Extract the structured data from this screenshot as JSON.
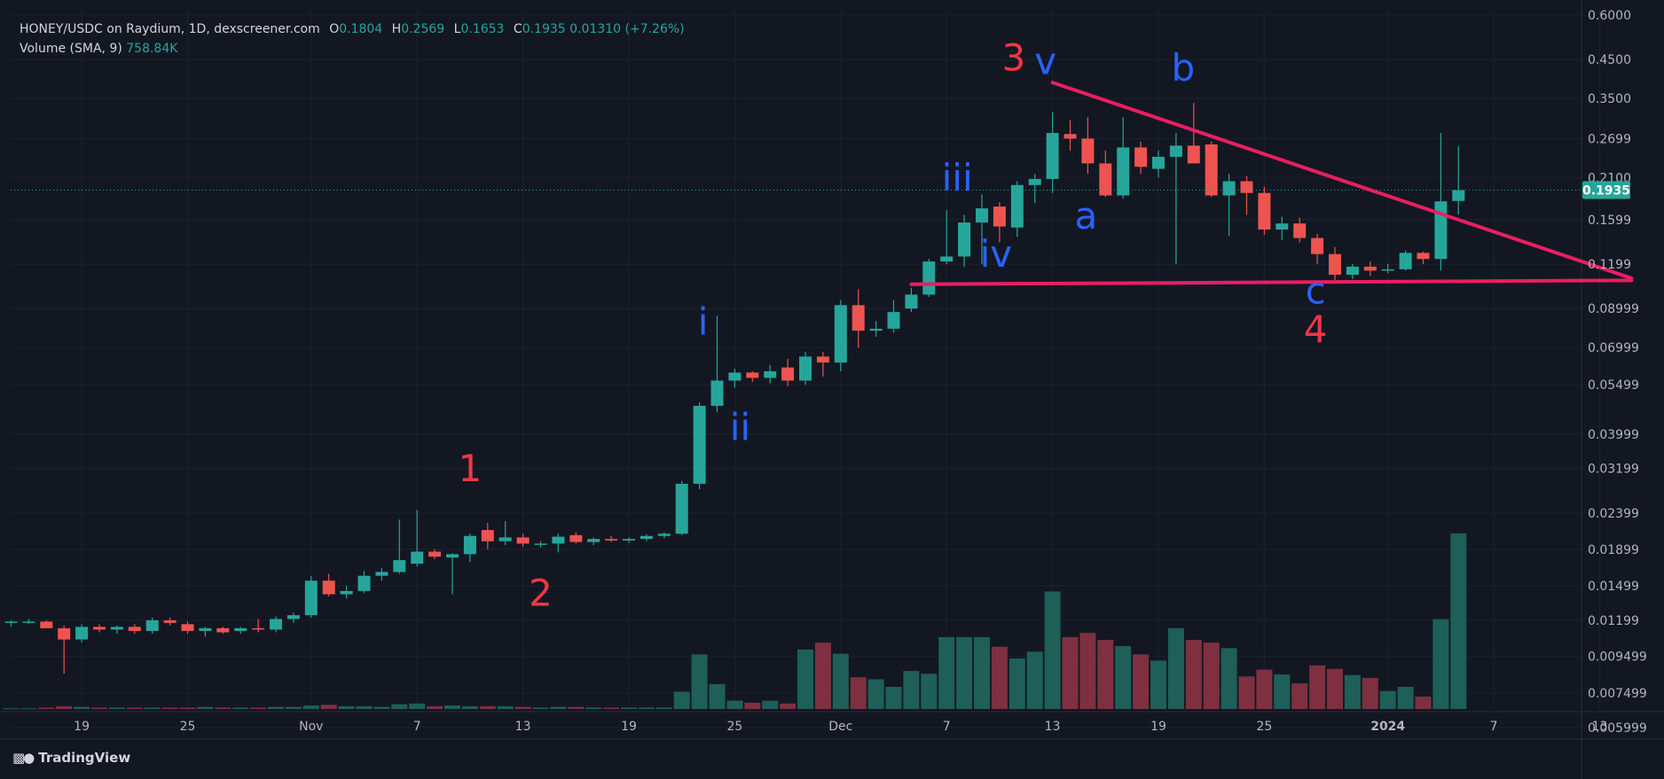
{
  "header": {
    "symbol": "HONEY/USDC on Raydium, 1D, dexscreener.com",
    "ohlc": [
      {
        "key": "O",
        "value": "0.1804"
      },
      {
        "key": "H",
        "value": "0.2569"
      },
      {
        "key": "L",
        "value": "0.1653"
      },
      {
        "key": "C",
        "value": "0.1935"
      }
    ],
    "change": "0.01310 (+7.26%)",
    "volume_label": "Volume (SMA, 9)",
    "volume_value": "758.84K"
  },
  "brand": {
    "name": "TradingView",
    "logo_icon": "tradingview-logo-icon"
  },
  "colors": {
    "background": "#131722",
    "up": "#26a69a",
    "down": "#ef5350",
    "trendline": "#e91e63",
    "wave_red": "#f23645",
    "wave_blue": "#2962ff",
    "grid": "#1e222d",
    "text": "#d1d4dc"
  },
  "chart_data": {
    "type": "candlestick",
    "y_scale": "log",
    "ylim": [
      0.0058,
      0.615
    ],
    "last_price_label": "0.1935",
    "x_start_date": "2023-10-15",
    "y_ticks": [
      "0.6000",
      "0.4500",
      "0.3500",
      "0.2699",
      "0.2100",
      "0.1599",
      "0.1199",
      "0.08999",
      "0.06999",
      "0.05499",
      "0.03999",
      "0.03199",
      "0.02399",
      "0.01899",
      "0.01499",
      "0.01199",
      "0.009499",
      "0.007499",
      "0.005999"
    ],
    "x_ticks": [
      {
        "label": "19",
        "day": 4
      },
      {
        "label": "25",
        "day": 10
      },
      {
        "label": "Nov",
        "day": 17
      },
      {
        "label": "7",
        "day": 23
      },
      {
        "label": "13",
        "day": 29
      },
      {
        "label": "19",
        "day": 35
      },
      {
        "label": "25",
        "day": 41
      },
      {
        "label": "Dec",
        "day": 47
      },
      {
        "label": "7",
        "day": 53
      },
      {
        "label": "13",
        "day": 59
      },
      {
        "label": "19",
        "day": 65
      },
      {
        "label": "25",
        "day": 71
      },
      {
        "label": "2024",
        "day": 78
      },
      {
        "label": "7",
        "day": 84
      },
      {
        "label": "13",
        "day": 90
      }
    ],
    "candles": [
      {
        "d": 0,
        "o": 0.0118,
        "h": 0.012,
        "l": 0.0115,
        "c": 0.0119,
        "v": 0.01
      },
      {
        "d": 1,
        "o": 0.0119,
        "h": 0.0121,
        "l": 0.0117,
        "c": 0.0119,
        "v": 0.01
      },
      {
        "d": 2,
        "o": 0.0119,
        "h": 0.012,
        "l": 0.0114,
        "c": 0.0114,
        "v": 0.02
      },
      {
        "d": 3,
        "o": 0.0114,
        "h": 0.0116,
        "l": 0.0085,
        "c": 0.0106,
        "v": 0.04
      },
      {
        "d": 4,
        "o": 0.0106,
        "h": 0.0117,
        "l": 0.0104,
        "c": 0.0115,
        "v": 0.03
      },
      {
        "d": 5,
        "o": 0.0115,
        "h": 0.0117,
        "l": 0.0111,
        "c": 0.0113,
        "v": 0.02
      },
      {
        "d": 6,
        "o": 0.0113,
        "h": 0.0116,
        "l": 0.011,
        "c": 0.0115,
        "v": 0.02
      },
      {
        "d": 7,
        "o": 0.0115,
        "h": 0.0117,
        "l": 0.011,
        "c": 0.0112,
        "v": 0.02
      },
      {
        "d": 8,
        "o": 0.0112,
        "h": 0.0122,
        "l": 0.011,
        "c": 0.012,
        "v": 0.02
      },
      {
        "d": 9,
        "o": 0.012,
        "h": 0.0122,
        "l": 0.0116,
        "c": 0.0118,
        "v": 0.02
      },
      {
        "d": 10,
        "o": 0.0117,
        "h": 0.0119,
        "l": 0.011,
        "c": 0.0112,
        "v": 0.02
      },
      {
        "d": 11,
        "o": 0.0112,
        "h": 0.0115,
        "l": 0.0108,
        "c": 0.0114,
        "v": 0.03
      },
      {
        "d": 12,
        "o": 0.0114,
        "h": 0.0115,
        "l": 0.011,
        "c": 0.0111,
        "v": 0.02
      },
      {
        "d": 13,
        "o": 0.0112,
        "h": 0.0115,
        "l": 0.011,
        "c": 0.0114,
        "v": 0.02
      },
      {
        "d": 14,
        "o": 0.0114,
        "h": 0.0121,
        "l": 0.0111,
        "c": 0.0113,
        "v": 0.02
      },
      {
        "d": 15,
        "o": 0.0113,
        "h": 0.0123,
        "l": 0.0111,
        "c": 0.0121,
        "v": 0.03
      },
      {
        "d": 16,
        "o": 0.0121,
        "h": 0.0126,
        "l": 0.0118,
        "c": 0.0124,
        "v": 0.03
      },
      {
        "d": 17,
        "o": 0.0124,
        "h": 0.016,
        "l": 0.0122,
        "c": 0.0155,
        "v": 0.05
      },
      {
        "d": 18,
        "o": 0.0155,
        "h": 0.0162,
        "l": 0.014,
        "c": 0.0142,
        "v": 0.06
      },
      {
        "d": 19,
        "o": 0.0142,
        "h": 0.015,
        "l": 0.0138,
        "c": 0.0145,
        "v": 0.04
      },
      {
        "d": 20,
        "o": 0.0145,
        "h": 0.0165,
        "l": 0.0143,
        "c": 0.016,
        "v": 0.04
      },
      {
        "d": 21,
        "o": 0.016,
        "h": 0.0168,
        "l": 0.0155,
        "c": 0.0164,
        "v": 0.03
      },
      {
        "d": 22,
        "o": 0.0164,
        "h": 0.023,
        "l": 0.0162,
        "c": 0.0177,
        "v": 0.07
      },
      {
        "d": 23,
        "o": 0.0173,
        "h": 0.0245,
        "l": 0.017,
        "c": 0.0187,
        "v": 0.08
      },
      {
        "d": 24,
        "o": 0.0187,
        "h": 0.019,
        "l": 0.0178,
        "c": 0.0181,
        "v": 0.04
      },
      {
        "d": 25,
        "o": 0.018,
        "h": 0.0185,
        "l": 0.0142,
        "c": 0.0184,
        "v": 0.05
      },
      {
        "d": 26,
        "o": 0.0184,
        "h": 0.021,
        "l": 0.0175,
        "c": 0.0207,
        "v": 0.04
      },
      {
        "d": 27,
        "o": 0.0215,
        "h": 0.0225,
        "l": 0.019,
        "c": 0.02,
        "v": 0.04
      },
      {
        "d": 28,
        "o": 0.02,
        "h": 0.0228,
        "l": 0.0195,
        "c": 0.0205,
        "v": 0.04
      },
      {
        "d": 29,
        "o": 0.0205,
        "h": 0.021,
        "l": 0.0193,
        "c": 0.0197,
        "v": 0.03
      },
      {
        "d": 30,
        "o": 0.0196,
        "h": 0.02,
        "l": 0.0192,
        "c": 0.0197,
        "v": 0.02
      },
      {
        "d": 31,
        "o": 0.0197,
        "h": 0.021,
        "l": 0.0186,
        "c": 0.0206,
        "v": 0.03
      },
      {
        "d": 32,
        "o": 0.0208,
        "h": 0.0212,
        "l": 0.0197,
        "c": 0.0199,
        "v": 0.03
      },
      {
        "d": 33,
        "o": 0.0199,
        "h": 0.0205,
        "l": 0.0195,
        "c": 0.0203,
        "v": 0.02
      },
      {
        "d": 34,
        "o": 0.0203,
        "h": 0.0207,
        "l": 0.0199,
        "c": 0.0201,
        "v": 0.02
      },
      {
        "d": 35,
        "o": 0.0201,
        "h": 0.0205,
        "l": 0.0198,
        "c": 0.0203,
        "v": 0.02
      },
      {
        "d": 36,
        "o": 0.0203,
        "h": 0.0209,
        "l": 0.02,
        "c": 0.0207,
        "v": 0.02
      },
      {
        "d": 37,
        "o": 0.0207,
        "h": 0.0212,
        "l": 0.0204,
        "c": 0.021,
        "v": 0.02
      },
      {
        "d": 38,
        "o": 0.021,
        "h": 0.0295,
        "l": 0.0208,
        "c": 0.029,
        "v": 0.25
      },
      {
        "d": 39,
        "o": 0.029,
        "h": 0.049,
        "l": 0.028,
        "c": 0.048,
        "v": 0.79
      },
      {
        "d": 40,
        "o": 0.048,
        "h": 0.086,
        "l": 0.046,
        "c": 0.0565,
        "v": 0.36
      },
      {
        "d": 41,
        "o": 0.0565,
        "h": 0.061,
        "l": 0.054,
        "c": 0.0595,
        "v": 0.12
      },
      {
        "d": 42,
        "o": 0.0595,
        "h": 0.06,
        "l": 0.056,
        "c": 0.0575,
        "v": 0.09
      },
      {
        "d": 43,
        "o": 0.0575,
        "h": 0.0625,
        "l": 0.0555,
        "c": 0.06,
        "v": 0.12
      },
      {
        "d": 44,
        "o": 0.0615,
        "h": 0.065,
        "l": 0.0545,
        "c": 0.0565,
        "v": 0.08
      },
      {
        "d": 45,
        "o": 0.0565,
        "h": 0.068,
        "l": 0.055,
        "c": 0.066,
        "v": 0.86
      },
      {
        "d": 46,
        "o": 0.066,
        "h": 0.068,
        "l": 0.058,
        "c": 0.0635,
        "v": 0.96
      },
      {
        "d": 47,
        "o": 0.0635,
        "h": 0.095,
        "l": 0.06,
        "c": 0.092,
        "v": 0.8
      },
      {
        "d": 48,
        "o": 0.092,
        "h": 0.102,
        "l": 0.07,
        "c": 0.078,
        "v": 0.46
      },
      {
        "d": 49,
        "o": 0.078,
        "h": 0.083,
        "l": 0.075,
        "c": 0.079,
        "v": 0.43
      },
      {
        "d": 50,
        "o": 0.079,
        "h": 0.095,
        "l": 0.077,
        "c": 0.088,
        "v": 0.32
      }
    ],
    "candles2": [
      {
        "d": 51,
        "o": 0.09,
        "h": 0.103,
        "l": 0.088,
        "c": 0.0985,
        "v": 0.55
      },
      {
        "d": 52,
        "o": 0.0985,
        "h": 0.124,
        "l": 0.097,
        "c": 0.122,
        "v": 0.51
      },
      {
        "d": 53,
        "o": 0.122,
        "h": 0.17,
        "l": 0.12,
        "c": 0.126,
        "v": 1.04
      },
      {
        "d": 54,
        "o": 0.126,
        "h": 0.165,
        "l": 0.118,
        "c": 0.157,
        "v": 1.04
      },
      {
        "d": 55,
        "o": 0.157,
        "h": 0.188,
        "l": 0.12,
        "c": 0.172,
        "v": 1.04
      },
      {
        "d": 56,
        "o": 0.174,
        "h": 0.179,
        "l": 0.138,
        "c": 0.153,
        "v": 0.9
      },
      {
        "d": 57,
        "o": 0.152,
        "h": 0.205,
        "l": 0.143,
        "c": 0.2,
        "v": 0.73
      },
      {
        "d": 58,
        "o": 0.2,
        "h": 0.215,
        "l": 0.178,
        "c": 0.208,
        "v": 0.83
      },
      {
        "d": 59,
        "o": 0.208,
        "h": 0.32,
        "l": 0.19,
        "c": 0.28,
        "v": 1.7
      },
      {
        "d": 60,
        "o": 0.278,
        "h": 0.305,
        "l": 0.25,
        "c": 0.27,
        "v": 1.04
      },
      {
        "d": 61,
        "o": 0.27,
        "h": 0.31,
        "l": 0.215,
        "c": 0.23,
        "v": 1.1
      },
      {
        "d": 62,
        "o": 0.23,
        "h": 0.25,
        "l": 0.185,
        "c": 0.187,
        "v": 1.0
      },
      {
        "d": 63,
        "o": 0.187,
        "h": 0.31,
        "l": 0.183,
        "c": 0.255,
        "v": 0.91
      },
      {
        "d": 64,
        "o": 0.255,
        "h": 0.265,
        "l": 0.215,
        "c": 0.225,
        "v": 0.79
      },
      {
        "d": 65,
        "o": 0.222,
        "h": 0.25,
        "l": 0.21,
        "c": 0.24,
        "v": 0.7
      },
      {
        "d": 66,
        "o": 0.24,
        "h": 0.28,
        "l": 0.12,
        "c": 0.258,
        "v": 1.17
      },
      {
        "d": 67,
        "o": 0.258,
        "h": 0.34,
        "l": 0.235,
        "c": 0.23,
        "v": 1.0
      },
      {
        "d": 68,
        "o": 0.26,
        "h": 0.265,
        "l": 0.185,
        "c": 0.187,
        "v": 0.96
      },
      {
        "d": 69,
        "o": 0.187,
        "h": 0.215,
        "l": 0.144,
        "c": 0.205,
        "v": 0.88
      },
      {
        "d": 70,
        "o": 0.205,
        "h": 0.212,
        "l": 0.165,
        "c": 0.19,
        "v": 0.47
      },
      {
        "d": 71,
        "o": 0.19,
        "h": 0.198,
        "l": 0.145,
        "c": 0.15,
        "v": 0.57
      },
      {
        "d": 72,
        "o": 0.15,
        "h": 0.163,
        "l": 0.14,
        "c": 0.156,
        "v": 0.5
      },
      {
        "d": 73,
        "o": 0.156,
        "h": 0.162,
        "l": 0.138,
        "c": 0.142,
        "v": 0.37
      },
      {
        "d": 74,
        "o": 0.142,
        "h": 0.146,
        "l": 0.12,
        "c": 0.128,
        "v": 0.63
      },
      {
        "d": 75,
        "o": 0.128,
        "h": 0.134,
        "l": 0.108,
        "c": 0.112,
        "v": 0.58
      },
      {
        "d": 76,
        "o": 0.112,
        "h": 0.12,
        "l": 0.109,
        "c": 0.118,
        "v": 0.49
      },
      {
        "d": 77,
        "o": 0.118,
        "h": 0.122,
        "l": 0.111,
        "c": 0.115,
        "v": 0.45
      },
      {
        "d": 78,
        "o": 0.115,
        "h": 0.12,
        "l": 0.113,
        "c": 0.116,
        "v": 0.26
      },
      {
        "d": 79,
        "o": 0.116,
        "h": 0.131,
        "l": 0.115,
        "c": 0.129,
        "v": 0.32
      },
      {
        "d": 80,
        "o": 0.129,
        "h": 0.13,
        "l": 0.12,
        "c": 0.124,
        "v": 0.18
      },
      {
        "d": 81,
        "o": 0.124,
        "h": 0.28,
        "l": 0.115,
        "c": 0.18,
        "v": 1.3
      },
      {
        "d": 82,
        "o": 0.1804,
        "h": 0.2569,
        "l": 0.1653,
        "c": 0.1935,
        "v": 2.54
      }
    ],
    "trendlines": [
      {
        "name": "upper",
        "from": {
          "d": 59,
          "p": 0.388
        },
        "to": {
          "d": 91.8,
          "p": 0.1095
        }
      },
      {
        "name": "lower",
        "from": {
          "d": 51,
          "p": 0.1053
        },
        "to": {
          "d": 91.8,
          "p": 0.108
        }
      }
    ],
    "wave_labels": [
      {
        "text": "1",
        "d": 26,
        "p": 0.0295,
        "color": "red"
      },
      {
        "text": "2",
        "d": 30,
        "p": 0.0132,
        "color": "red"
      },
      {
        "text": "3",
        "d": 56.8,
        "p": 0.42,
        "color": "red"
      },
      {
        "text": "4",
        "d": 73.9,
        "p": 0.0725,
        "color": "red"
      },
      {
        "text": "i",
        "d": 39.2,
        "p": 0.076,
        "color": "blue"
      },
      {
        "text": "ii",
        "d": 41.3,
        "p": 0.0385,
        "color": "blue"
      },
      {
        "text": "iii",
        "d": 53.6,
        "p": 0.193,
        "color": "blue"
      },
      {
        "text": "iv",
        "d": 55.8,
        "p": 0.118,
        "color": "blue"
      },
      {
        "text": "v",
        "d": 58.6,
        "p": 0.41,
        "color": "blue"
      },
      {
        "text": "a",
        "d": 60.9,
        "p": 0.151,
        "color": "blue"
      },
      {
        "text": "b",
        "d": 66.4,
        "p": 0.393,
        "color": "blue"
      },
      {
        "text": "c",
        "d": 73.9,
        "p": 0.093,
        "color": "blue"
      }
    ]
  }
}
